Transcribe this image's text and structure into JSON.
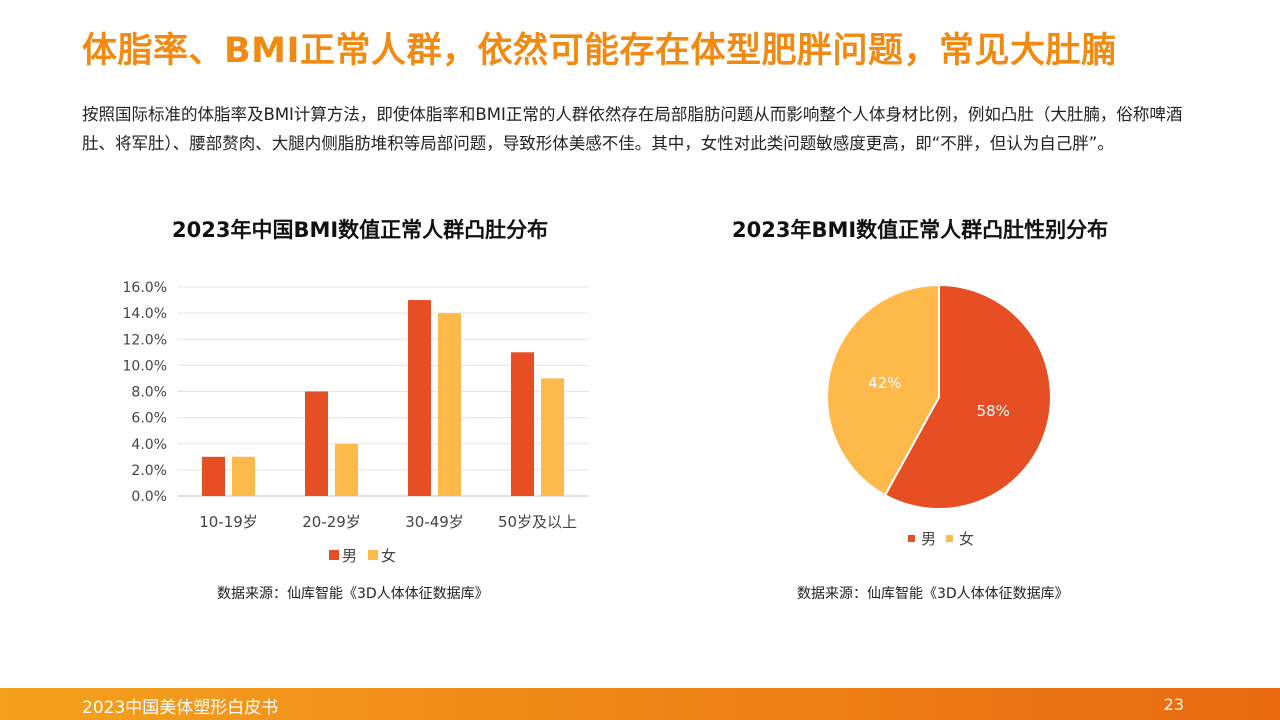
{
  "page": {
    "title": "体脂率、BMI正常人群，依然可能存在体型肥胖问题，常见大肚腩",
    "intro": "按照国际标准的体脂率及BMI计算方法，即使体脂率和BMI正常的人群依然存在局部脂肪问题从而影响整个人体身材比例，例如凸肚（大肚腩，俗称啤酒肚、将军肚）、腰部赘肉、大腿内侧脂肪堆积等局部问题，导致形体美感不佳。其中，女性对此类问题敏感度更高，即“不胖，但认为自己胖”。",
    "footer_left": "2023中国美体塑形白皮书",
    "page_number": "23"
  },
  "colors": {
    "accent": "#F08A12",
    "male": "#E64E24",
    "female": "#FDB94A"
  },
  "chart_data": [
    {
      "type": "bar",
      "title": "2023年中国BMI数值正常人群凸肚分布",
      "categories": [
        "10-19岁",
        "20-29岁",
        "30-49岁",
        "50岁及以上"
      ],
      "series": [
        {
          "name": "男",
          "values": [
            3.0,
            8.0,
            15.0,
            11.0
          ]
        },
        {
          "name": "女",
          "values": [
            3.0,
            4.0,
            14.0,
            9.0
          ]
        }
      ],
      "ylim": [
        0,
        16
      ],
      "yticks": [
        "0.0%",
        "2.0%",
        "4.0%",
        "6.0%",
        "8.0%",
        "10.0%",
        "12.0%",
        "14.0%",
        "16.0%"
      ],
      "grid": true,
      "legend": "bottom",
      "source": "数据来源：仙库智能《3D人体体征数据库》"
    },
    {
      "type": "pie",
      "title": "2023年BMI数值正常人群凸肚性别分布",
      "slices": [
        {
          "name": "男",
          "value": 58,
          "label": "58%"
        },
        {
          "name": "女",
          "value": 42,
          "label": "42%"
        }
      ],
      "legend": "bottom",
      "source": "数据来源：仙库智能《3D人体体征数据库》"
    }
  ]
}
